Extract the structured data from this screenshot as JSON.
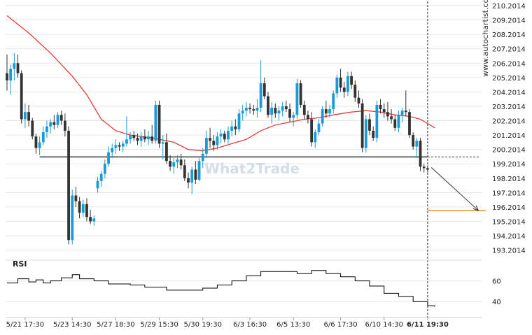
{
  "watermark": {
    "vertical_text": "www.autochartist.com",
    "logo_text": "What2Trade"
  },
  "rsi_label": "RSI",
  "colors": {
    "bull": "#1a9ad6",
    "bear": "#333333",
    "ma": "#e23b3b",
    "support": "#333333",
    "projection": "#e8852a",
    "rsi": "#000000",
    "grid": "#e6e6e6",
    "text": "#222222",
    "watermark": "#c9d6e4"
  },
  "chart_data": {
    "type": "candlestick",
    "title": "",
    "price_axis": {
      "range": [
        192.5,
        210.3
      ],
      "ticks": [
        "193.2014",
        "194.2014",
        "195.2014",
        "196.2014",
        "197.2014",
        "198.2014",
        "199.2014",
        "200.2014",
        "201.2014",
        "202.2014",
        "203.2014",
        "204.2014",
        "205.2014",
        "206.2014",
        "207.2014",
        "208.2014",
        "209.2014",
        "210.2014"
      ]
    },
    "time_axis": {
      "labels": [
        "5/21 17:30",
        "5/23 14:30",
        "5/27 18:30",
        "5/29 15:30",
        "5/30 19:30",
        "6/3 16:30",
        "6/5 13:30",
        "6/6 17:30",
        "6/10 14:30",
        "6/11 19:30"
      ],
      "label_bar_index": [
        5,
        18,
        30,
        42,
        54,
        67,
        79,
        92,
        104,
        116
      ],
      "current_bar_index": 116
    },
    "support_level": 199.68,
    "support_start_bar": 9,
    "target_level": 195.95,
    "projection": {
      "from_bar": 117,
      "from_price": 198.95,
      "to_bar": 130,
      "to_price": 195.95
    },
    "candles": [
      {
        "o": 205.5,
        "h": 206.8,
        "l": 204.3,
        "c": 205.0
      },
      {
        "o": 205.0,
        "h": 206.1,
        "l": 204.0,
        "c": 205.8
      },
      {
        "o": 205.8,
        "h": 206.9,
        "l": 205.0,
        "c": 206.2
      },
      {
        "o": 206.2,
        "h": 206.8,
        "l": 205.2,
        "c": 205.5
      },
      {
        "o": 205.5,
        "h": 205.7,
        "l": 202.0,
        "c": 202.3
      },
      {
        "o": 202.3,
        "h": 203.4,
        "l": 201.7,
        "c": 202.8
      },
      {
        "o": 202.8,
        "h": 203.3,
        "l": 201.8,
        "c": 202.2
      },
      {
        "o": 202.2,
        "h": 202.4,
        "l": 200.9,
        "c": 201.1
      },
      {
        "o": 201.1,
        "h": 201.3,
        "l": 199.9,
        "c": 200.3
      },
      {
        "o": 200.3,
        "h": 201.1,
        "l": 199.8,
        "c": 200.7
      },
      {
        "o": 200.7,
        "h": 201.8,
        "l": 200.5,
        "c": 201.4
      },
      {
        "o": 201.4,
        "h": 202.2,
        "l": 201.0,
        "c": 201.8
      },
      {
        "o": 201.8,
        "h": 202.3,
        "l": 201.3,
        "c": 202.1
      },
      {
        "o": 202.1,
        "h": 202.6,
        "l": 201.6,
        "c": 201.9
      },
      {
        "o": 201.9,
        "h": 202.8,
        "l": 201.7,
        "c": 202.6
      },
      {
        "o": 202.6,
        "h": 202.9,
        "l": 201.9,
        "c": 202.2
      },
      {
        "o": 202.2,
        "h": 202.7,
        "l": 201.1,
        "c": 201.5
      },
      {
        "o": 201.5,
        "h": 201.8,
        "l": 193.6,
        "c": 193.9
      },
      {
        "o": 193.9,
        "h": 197.4,
        "l": 193.6,
        "c": 197.0
      },
      {
        "o": 197.0,
        "h": 197.6,
        "l": 196.2,
        "c": 196.6
      },
      {
        "o": 196.6,
        "h": 196.9,
        "l": 195.4,
        "c": 195.8
      },
      {
        "o": 195.8,
        "h": 196.7,
        "l": 195.5,
        "c": 196.4
      },
      {
        "o": 196.4,
        "h": 196.8,
        "l": 195.2,
        "c": 195.5
      },
      {
        "o": 195.5,
        "h": 196.0,
        "l": 195.0,
        "c": 195.2
      },
      {
        "o": 195.2,
        "h": 195.6,
        "l": 194.9,
        "c": 195.4
      },
      {
        "o": 197.5,
        "h": 198.3,
        "l": 197.2,
        "c": 198.0
      },
      {
        "o": 198.0,
        "h": 198.7,
        "l": 197.6,
        "c": 198.5
      },
      {
        "o": 198.5,
        "h": 199.5,
        "l": 198.2,
        "c": 199.2
      },
      {
        "o": 199.2,
        "h": 200.4,
        "l": 199.0,
        "c": 200.0
      },
      {
        "o": 200.0,
        "h": 200.6,
        "l": 199.6,
        "c": 200.3
      },
      {
        "o": 200.3,
        "h": 200.9,
        "l": 199.9,
        "c": 200.5
      },
      {
        "o": 200.5,
        "h": 200.7,
        "l": 200.1,
        "c": 200.4
      },
      {
        "o": 200.4,
        "h": 200.8,
        "l": 200.0,
        "c": 200.6
      },
      {
        "o": 200.6,
        "h": 202.5,
        "l": 200.4,
        "c": 200.9
      },
      {
        "o": 200.9,
        "h": 201.4,
        "l": 200.6,
        "c": 201.2
      },
      {
        "o": 201.2,
        "h": 201.5,
        "l": 200.8,
        "c": 201.0
      },
      {
        "o": 201.0,
        "h": 201.3,
        "l": 200.5,
        "c": 200.8
      },
      {
        "o": 200.8,
        "h": 201.4,
        "l": 200.4,
        "c": 201.1
      },
      {
        "o": 201.1,
        "h": 201.6,
        "l": 200.7,
        "c": 200.9
      },
      {
        "o": 200.9,
        "h": 201.5,
        "l": 200.5,
        "c": 201.1
      },
      {
        "o": 201.1,
        "h": 201.9,
        "l": 200.6,
        "c": 200.8
      },
      {
        "o": 200.8,
        "h": 203.6,
        "l": 200.6,
        "c": 203.3
      },
      {
        "o": 203.3,
        "h": 203.6,
        "l": 200.3,
        "c": 200.6
      },
      {
        "o": 200.6,
        "h": 201.2,
        "l": 199.5,
        "c": 200.7
      },
      {
        "o": 200.7,
        "h": 201.3,
        "l": 199.2,
        "c": 199.4
      },
      {
        "o": 199.4,
        "h": 199.8,
        "l": 198.7,
        "c": 199.0
      },
      {
        "o": 199.0,
        "h": 199.6,
        "l": 198.5,
        "c": 199.3
      },
      {
        "o": 199.3,
        "h": 199.8,
        "l": 198.9,
        "c": 199.5
      },
      {
        "o": 199.5,
        "h": 199.9,
        "l": 198.8,
        "c": 199.1
      },
      {
        "o": 199.1,
        "h": 199.5,
        "l": 198.0,
        "c": 198.2
      },
      {
        "o": 198.2,
        "h": 198.6,
        "l": 197.5,
        "c": 197.9
      },
      {
        "o": 197.9,
        "h": 199.0,
        "l": 197.1,
        "c": 198.8
      },
      {
        "o": 198.8,
        "h": 199.4,
        "l": 197.8,
        "c": 198.1
      },
      {
        "o": 198.1,
        "h": 199.6,
        "l": 198.0,
        "c": 199.4
      },
      {
        "o": 199.4,
        "h": 200.3,
        "l": 198.9,
        "c": 199.9
      },
      {
        "o": 199.9,
        "h": 201.5,
        "l": 199.6,
        "c": 201.0
      },
      {
        "o": 201.0,
        "h": 201.7,
        "l": 200.3,
        "c": 200.8
      },
      {
        "o": 200.8,
        "h": 201.2,
        "l": 200.1,
        "c": 200.5
      },
      {
        "o": 200.5,
        "h": 201.4,
        "l": 200.2,
        "c": 201.1
      },
      {
        "o": 201.1,
        "h": 201.6,
        "l": 200.6,
        "c": 201.3
      },
      {
        "o": 201.3,
        "h": 201.5,
        "l": 200.7,
        "c": 200.9
      },
      {
        "o": 200.9,
        "h": 201.8,
        "l": 200.6,
        "c": 201.5
      },
      {
        "o": 201.5,
        "h": 202.2,
        "l": 201.1,
        "c": 201.8
      },
      {
        "o": 201.8,
        "h": 202.3,
        "l": 201.2,
        "c": 201.6
      },
      {
        "o": 201.6,
        "h": 203.0,
        "l": 201.4,
        "c": 202.7
      },
      {
        "o": 202.7,
        "h": 203.3,
        "l": 202.2,
        "c": 202.9
      },
      {
        "o": 202.9,
        "h": 203.5,
        "l": 202.5,
        "c": 203.1
      },
      {
        "o": 203.1,
        "h": 203.4,
        "l": 202.7,
        "c": 203.0
      },
      {
        "o": 203.0,
        "h": 203.3,
        "l": 202.6,
        "c": 202.9
      },
      {
        "o": 202.9,
        "h": 203.7,
        "l": 202.4,
        "c": 203.1
      },
      {
        "o": 203.1,
        "h": 206.4,
        "l": 202.8,
        "c": 204.8
      },
      {
        "o": 204.8,
        "h": 205.2,
        "l": 203.7,
        "c": 203.9
      },
      {
        "o": 203.9,
        "h": 204.2,
        "l": 202.4,
        "c": 202.6
      },
      {
        "o": 202.6,
        "h": 203.5,
        "l": 202.0,
        "c": 203.1
      },
      {
        "o": 203.1,
        "h": 203.4,
        "l": 202.4,
        "c": 202.7
      },
      {
        "o": 202.7,
        "h": 203.2,
        "l": 202.2,
        "c": 202.9
      },
      {
        "o": 202.9,
        "h": 203.5,
        "l": 202.5,
        "c": 203.2
      },
      {
        "o": 203.2,
        "h": 203.6,
        "l": 202.8,
        "c": 203.0
      },
      {
        "o": 203.0,
        "h": 203.4,
        "l": 202.1,
        "c": 202.4
      },
      {
        "o": 202.4,
        "h": 202.8,
        "l": 201.8,
        "c": 202.6
      },
      {
        "o": 202.6,
        "h": 205.1,
        "l": 202.3,
        "c": 204.8
      },
      {
        "o": 204.8,
        "h": 205.0,
        "l": 203.1,
        "c": 203.3
      },
      {
        "o": 203.3,
        "h": 203.6,
        "l": 202.3,
        "c": 202.6
      },
      {
        "o": 202.6,
        "h": 202.9,
        "l": 202.0,
        "c": 202.3
      },
      {
        "o": 202.3,
        "h": 202.8,
        "l": 200.4,
        "c": 200.7
      },
      {
        "o": 200.7,
        "h": 201.6,
        "l": 200.3,
        "c": 201.4
      },
      {
        "o": 201.4,
        "h": 202.3,
        "l": 201.2,
        "c": 202.0
      },
      {
        "o": 202.0,
        "h": 203.2,
        "l": 201.8,
        "c": 203.0
      },
      {
        "o": 203.0,
        "h": 203.6,
        "l": 202.4,
        "c": 202.7
      },
      {
        "o": 202.7,
        "h": 203.3,
        "l": 202.4,
        "c": 203.0
      },
      {
        "o": 203.0,
        "h": 204.3,
        "l": 202.7,
        "c": 204.1
      },
      {
        "o": 204.1,
        "h": 205.4,
        "l": 203.8,
        "c": 205.2
      },
      {
        "o": 205.2,
        "h": 205.8,
        "l": 204.2,
        "c": 204.5
      },
      {
        "o": 204.5,
        "h": 204.9,
        "l": 203.8,
        "c": 204.2
      },
      {
        "o": 204.2,
        "h": 205.6,
        "l": 203.9,
        "c": 205.3
      },
      {
        "o": 205.3,
        "h": 205.6,
        "l": 204.4,
        "c": 204.7
      },
      {
        "o": 204.7,
        "h": 205.0,
        "l": 203.5,
        "c": 203.8
      },
      {
        "o": 203.8,
        "h": 204.3,
        "l": 203.1,
        "c": 203.4
      },
      {
        "o": 203.4,
        "h": 203.7,
        "l": 200.0,
        "c": 200.3
      },
      {
        "o": 200.3,
        "h": 202.6,
        "l": 200.0,
        "c": 202.3
      },
      {
        "o": 202.3,
        "h": 202.7,
        "l": 201.2,
        "c": 201.5
      },
      {
        "o": 201.5,
        "h": 201.8,
        "l": 200.8,
        "c": 201.0
      },
      {
        "o": 201.0,
        "h": 203.6,
        "l": 200.7,
        "c": 203.3
      },
      {
        "o": 203.3,
        "h": 203.7,
        "l": 202.7,
        "c": 203.0
      },
      {
        "o": 203.0,
        "h": 203.4,
        "l": 202.4,
        "c": 202.8
      },
      {
        "o": 202.8,
        "h": 203.5,
        "l": 202.2,
        "c": 202.5
      },
      {
        "o": 202.5,
        "h": 203.0,
        "l": 202.0,
        "c": 202.3
      },
      {
        "o": 202.3,
        "h": 202.6,
        "l": 201.5,
        "c": 201.7
      },
      {
        "o": 201.7,
        "h": 202.9,
        "l": 201.4,
        "c": 202.6
      },
      {
        "o": 202.6,
        "h": 203.1,
        "l": 202.1,
        "c": 202.9
      },
      {
        "o": 202.9,
        "h": 204.3,
        "l": 202.5,
        "c": 202.8
      },
      {
        "o": 202.8,
        "h": 203.0,
        "l": 201.0,
        "c": 201.2
      },
      {
        "o": 201.2,
        "h": 201.4,
        "l": 200.2,
        "c": 200.4
      },
      {
        "o": 200.4,
        "h": 201.0,
        "l": 199.6,
        "c": 200.8
      },
      {
        "o": 200.8,
        "h": 201.0,
        "l": 198.7,
        "c": 199.0
      },
      {
        "o": 199.0,
        "h": 199.2,
        "l": 198.6,
        "c": 198.9
      },
      {
        "o": 198.9,
        "h": 199.1,
        "l": 198.6,
        "c": 198.8
      }
    ],
    "moving_average": [
      {
        "bar": 0,
        "v": 209.5
      },
      {
        "bar": 6,
        "v": 208.3
      },
      {
        "bar": 12,
        "v": 206.9
      },
      {
        "bar": 18,
        "v": 205.3
      },
      {
        "bar": 22,
        "v": 204.0
      },
      {
        "bar": 26,
        "v": 202.3
      },
      {
        "bar": 30,
        "v": 201.5
      },
      {
        "bar": 34,
        "v": 201.2
      },
      {
        "bar": 40,
        "v": 201.0
      },
      {
        "bar": 46,
        "v": 200.7
      },
      {
        "bar": 50,
        "v": 200.2
      },
      {
        "bar": 54,
        "v": 200.1
      },
      {
        "bar": 58,
        "v": 200.3
      },
      {
        "bar": 62,
        "v": 200.6
      },
      {
        "bar": 66,
        "v": 200.9
      },
      {
        "bar": 70,
        "v": 201.5
      },
      {
        "bar": 74,
        "v": 201.9
      },
      {
        "bar": 78,
        "v": 202.1
      },
      {
        "bar": 82,
        "v": 202.3
      },
      {
        "bar": 86,
        "v": 202.4
      },
      {
        "bar": 90,
        "v": 202.6
      },
      {
        "bar": 95,
        "v": 202.8
      },
      {
        "bar": 99,
        "v": 202.9
      },
      {
        "bar": 103,
        "v": 202.8
      },
      {
        "bar": 107,
        "v": 202.6
      },
      {
        "bar": 111,
        "v": 202.5
      },
      {
        "bar": 114,
        "v": 202.3
      },
      {
        "bar": 118,
        "v": 201.7
      }
    ],
    "rsi": {
      "ticks": [
        40,
        60
      ],
      "range": [
        30,
        80
      ],
      "values": [
        {
          "bar": 0,
          "v": 58
        },
        {
          "bar": 3,
          "v": 62
        },
        {
          "bar": 6,
          "v": 59
        },
        {
          "bar": 8,
          "v": 61
        },
        {
          "bar": 10,
          "v": 58
        },
        {
          "bar": 12,
          "v": 60
        },
        {
          "bar": 15,
          "v": 63
        },
        {
          "bar": 18,
          "v": 66
        },
        {
          "bar": 20,
          "v": 62
        },
        {
          "bar": 24,
          "v": 60
        },
        {
          "bar": 28,
          "v": 57
        },
        {
          "bar": 34,
          "v": 56
        },
        {
          "bar": 38,
          "v": 54
        },
        {
          "bar": 44,
          "v": 51
        },
        {
          "bar": 50,
          "v": 51
        },
        {
          "bar": 54,
          "v": 53
        },
        {
          "bar": 58,
          "v": 56
        },
        {
          "bar": 62,
          "v": 60
        },
        {
          "bar": 66,
          "v": 65
        },
        {
          "bar": 70,
          "v": 69
        },
        {
          "bar": 76,
          "v": 69
        },
        {
          "bar": 80,
          "v": 67
        },
        {
          "bar": 84,
          "v": 70
        },
        {
          "bar": 88,
          "v": 67
        },
        {
          "bar": 92,
          "v": 64
        },
        {
          "bar": 96,
          "v": 60
        },
        {
          "bar": 100,
          "v": 55
        },
        {
          "bar": 104,
          "v": 48
        },
        {
          "bar": 108,
          "v": 45
        },
        {
          "bar": 112,
          "v": 40
        },
        {
          "bar": 116,
          "v": 36
        },
        {
          "bar": 118,
          "v": 35
        }
      ]
    }
  }
}
